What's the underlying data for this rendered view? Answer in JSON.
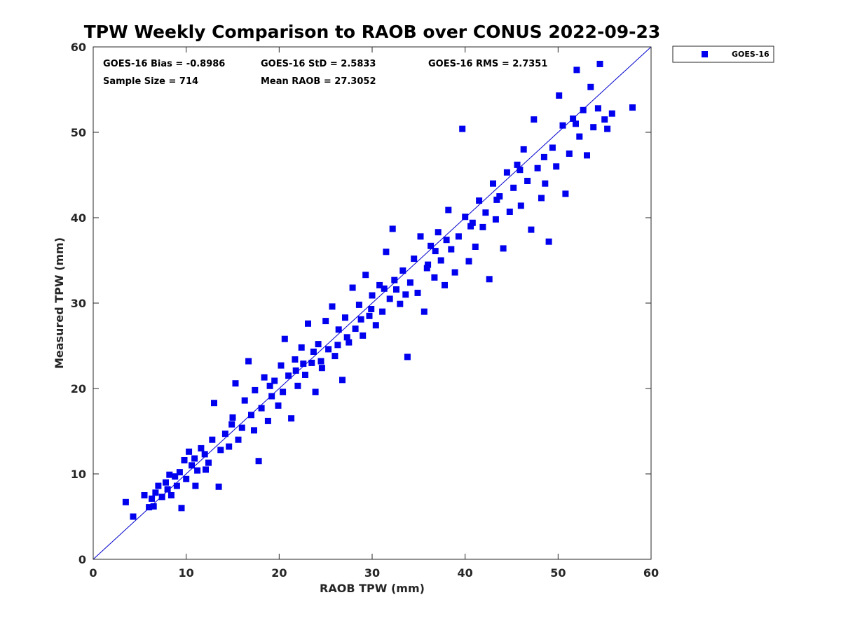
{
  "chart_data": {
    "type": "scatter",
    "title": "TPW Weekly Comparison to RAOB over CONUS 2022-09-23",
    "xlabel": "RAOB TPW (mm)",
    "ylabel": "Measured TPW (mm)",
    "xlim": [
      0,
      60
    ],
    "ylim": [
      0,
      60
    ],
    "xticks": [
      "0",
      "10",
      "20",
      "30",
      "40",
      "50",
      "60"
    ],
    "yticks": [
      "0",
      "10",
      "20",
      "30",
      "40",
      "50",
      "60"
    ],
    "grid": false,
    "legend_position": "outside-top-right",
    "reference_line": {
      "name": "1:1 line",
      "from": [
        0,
        0
      ],
      "to": [
        60,
        60
      ],
      "color": "#0000cc"
    },
    "stats": {
      "bias": "GOES-16 Bias = -0.8986",
      "std": "GOES-16 StD = 2.5833",
      "rms": "GOES-16 RMS = 2.7351",
      "sample_size": "Sample Size = 714",
      "mean_raob": "Mean RAOB = 27.3052"
    },
    "series": [
      {
        "name": "GOES-16",
        "color": "#0000ee",
        "marker": "square",
        "points": [
          [
            3.5,
            6.7
          ],
          [
            4.3,
            5.0
          ],
          [
            5.5,
            7.5
          ],
          [
            6.0,
            6.1
          ],
          [
            6.3,
            7.1
          ],
          [
            6.5,
            6.2
          ],
          [
            7.0,
            8.6
          ],
          [
            7.4,
            7.3
          ],
          [
            7.8,
            9.0
          ],
          [
            8.0,
            8.2
          ],
          [
            8.4,
            7.5
          ],
          [
            8.8,
            9.7
          ],
          [
            9.0,
            8.6
          ],
          [
            9.3,
            10.2
          ],
          [
            9.5,
            6.0
          ],
          [
            9.8,
            11.6
          ],
          [
            10.0,
            9.4
          ],
          [
            10.3,
            12.6
          ],
          [
            10.6,
            11.0
          ],
          [
            11.0,
            8.6
          ],
          [
            11.2,
            10.4
          ],
          [
            11.6,
            13.0
          ],
          [
            12.0,
            12.3
          ],
          [
            12.4,
            11.3
          ],
          [
            12.8,
            14.0
          ],
          [
            13.0,
            18.3
          ],
          [
            13.5,
            8.5
          ],
          [
            13.7,
            12.8
          ],
          [
            14.2,
            14.7
          ],
          [
            14.6,
            13.2
          ],
          [
            15.0,
            16.6
          ],
          [
            15.3,
            20.6
          ],
          [
            15.6,
            14.0
          ],
          [
            16.0,
            15.4
          ],
          [
            16.3,
            18.6
          ],
          [
            16.7,
            23.2
          ],
          [
            17.0,
            16.9
          ],
          [
            17.4,
            19.8
          ],
          [
            17.8,
            11.5
          ],
          [
            18.1,
            17.7
          ],
          [
            18.4,
            21.3
          ],
          [
            18.8,
            16.2
          ],
          [
            19.2,
            19.1
          ],
          [
            19.5,
            20.9
          ],
          [
            19.9,
            18.0
          ],
          [
            20.2,
            22.7
          ],
          [
            20.6,
            25.8
          ],
          [
            21.0,
            21.5
          ],
          [
            21.3,
            16.5
          ],
          [
            21.7,
            23.4
          ],
          [
            22.0,
            20.3
          ],
          [
            22.4,
            24.8
          ],
          [
            22.8,
            21.6
          ],
          [
            23.1,
            27.6
          ],
          [
            23.5,
            23.0
          ],
          [
            23.9,
            19.6
          ],
          [
            24.2,
            25.2
          ],
          [
            24.6,
            22.4
          ],
          [
            25.0,
            27.9
          ],
          [
            25.3,
            24.6
          ],
          [
            25.7,
            29.6
          ],
          [
            26.0,
            23.8
          ],
          [
            26.4,
            26.9
          ],
          [
            26.8,
            21.0
          ],
          [
            27.1,
            28.3
          ],
          [
            27.5,
            25.4
          ],
          [
            27.9,
            31.8
          ],
          [
            28.2,
            27.0
          ],
          [
            28.6,
            29.8
          ],
          [
            29.0,
            26.2
          ],
          [
            29.3,
            33.3
          ],
          [
            29.7,
            28.5
          ],
          [
            30.0,
            30.9
          ],
          [
            30.4,
            27.4
          ],
          [
            30.8,
            32.1
          ],
          [
            31.1,
            29.0
          ],
          [
            31.5,
            36.0
          ],
          [
            31.9,
            30.5
          ],
          [
            32.2,
            38.7
          ],
          [
            32.6,
            31.6
          ],
          [
            33.0,
            29.9
          ],
          [
            33.3,
            33.8
          ],
          [
            33.8,
            23.7
          ],
          [
            34.1,
            32.4
          ],
          [
            34.5,
            35.2
          ],
          [
            34.9,
            31.2
          ],
          [
            35.2,
            37.8
          ],
          [
            35.6,
            29.0
          ],
          [
            36.0,
            34.5
          ],
          [
            36.3,
            36.7
          ],
          [
            36.7,
            33.0
          ],
          [
            37.1,
            38.3
          ],
          [
            37.4,
            35.0
          ],
          [
            37.8,
            32.1
          ],
          [
            38.2,
            40.9
          ],
          [
            38.5,
            36.3
          ],
          [
            38.9,
            33.6
          ],
          [
            39.3,
            37.8
          ],
          [
            39.7,
            50.4
          ],
          [
            40.0,
            40.1
          ],
          [
            40.4,
            34.9
          ],
          [
            40.8,
            39.4
          ],
          [
            41.1,
            36.6
          ],
          [
            41.5,
            42.0
          ],
          [
            41.9,
            38.9
          ],
          [
            42.2,
            40.6
          ],
          [
            42.6,
            32.8
          ],
          [
            43.0,
            44.0
          ],
          [
            43.3,
            39.8
          ],
          [
            43.7,
            42.5
          ],
          [
            44.1,
            36.4
          ],
          [
            44.5,
            45.3
          ],
          [
            44.8,
            40.7
          ],
          [
            45.2,
            43.5
          ],
          [
            45.6,
            46.2
          ],
          [
            46.0,
            41.4
          ],
          [
            46.3,
            48.0
          ],
          [
            46.7,
            44.3
          ],
          [
            47.1,
            38.6
          ],
          [
            47.4,
            51.5
          ],
          [
            47.8,
            45.8
          ],
          [
            48.2,
            42.3
          ],
          [
            48.6,
            44.0
          ],
          [
            49.0,
            37.2
          ],
          [
            49.4,
            48.2
          ],
          [
            49.8,
            46.0
          ],
          [
            50.1,
            54.3
          ],
          [
            50.5,
            50.8
          ],
          [
            50.8,
            42.8
          ],
          [
            51.2,
            47.5
          ],
          [
            51.6,
            51.6
          ],
          [
            52.0,
            57.3
          ],
          [
            52.3,
            49.5
          ],
          [
            52.7,
            52.6
          ],
          [
            53.1,
            47.3
          ],
          [
            53.5,
            55.3
          ],
          [
            53.8,
            50.6
          ],
          [
            54.3,
            52.8
          ],
          [
            54.5,
            58.0
          ],
          [
            55.0,
            51.5
          ],
          [
            55.3,
            50.4
          ],
          [
            55.8,
            52.2
          ],
          [
            58.0,
            52.9
          ],
          [
            6.7,
            7.8
          ],
          [
            8.2,
            9.9
          ],
          [
            10.9,
            11.8
          ],
          [
            12.1,
            10.5
          ],
          [
            14.9,
            15.8
          ],
          [
            17.3,
            15.1
          ],
          [
            19.0,
            20.3
          ],
          [
            21.8,
            22.1
          ],
          [
            23.7,
            24.3
          ],
          [
            26.3,
            25.1
          ],
          [
            28.8,
            28.1
          ],
          [
            31.3,
            31.7
          ],
          [
            33.6,
            31.0
          ],
          [
            35.9,
            34.1
          ],
          [
            38.0,
            37.4
          ],
          [
            40.6,
            39.0
          ],
          [
            43.4,
            42.1
          ],
          [
            45.9,
            45.6
          ],
          [
            48.5,
            47.1
          ],
          [
            51.9,
            51.0
          ],
          [
            24.5,
            23.2
          ],
          [
            27.3,
            26.0
          ],
          [
            29.9,
            29.3
          ],
          [
            32.4,
            32.7
          ],
          [
            36.8,
            36.1
          ],
          [
            22.6,
            22.9
          ],
          [
            20.4,
            19.6
          ]
        ]
      }
    ]
  }
}
